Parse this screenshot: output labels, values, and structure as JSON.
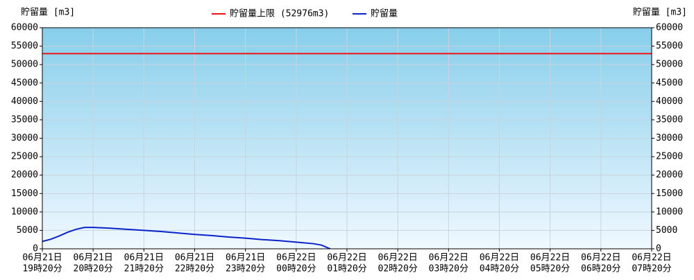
{
  "chart_data": {
    "type": "line",
    "y_label": "貯留量 [m3]",
    "y2_label": "貯留量 [m3]",
    "ylim": [
      0,
      60000
    ],
    "yticks": [
      0,
      5000,
      10000,
      15000,
      20000,
      25000,
      30000,
      35000,
      40000,
      45000,
      50000,
      55000,
      60000
    ],
    "y2lim": [
      0,
      60000
    ],
    "y2ticks": [
      0,
      5000,
      10000,
      15000,
      20000,
      25000,
      30000,
      35000,
      40000,
      45000,
      50000,
      55000,
      60000
    ],
    "xticks": [
      {
        "date": "06月21日",
        "time": "19時20分"
      },
      {
        "date": "06月21日",
        "time": "20時20分"
      },
      {
        "date": "06月21日",
        "time": "21時20分"
      },
      {
        "date": "06月21日",
        "time": "22時20分"
      },
      {
        "date": "06月21日",
        "time": "23時20分"
      },
      {
        "date": "06月22日",
        "time": "00時20分"
      },
      {
        "date": "06月22日",
        "time": "01時20分"
      },
      {
        "date": "06月22日",
        "time": "02時20分"
      },
      {
        "date": "06月22日",
        "time": "03時20分"
      },
      {
        "date": "06月22日",
        "time": "04時20分"
      },
      {
        "date": "06月22日",
        "time": "05時20分"
      },
      {
        "date": "06月22日",
        "time": "06時20分"
      },
      {
        "date": "06月22日",
        "time": "07時20分"
      }
    ],
    "grid": true,
    "limit": {
      "name": "貯留量上限 (52976m3)",
      "color": "#ee1111",
      "value": 52976
    },
    "x": [
      "06月21日 19時20分",
      "06月21日 19時30分",
      "06月21日 19時40分",
      "06月21日 19時50分",
      "06月21日 20時00分",
      "06月21日 20時10分",
      "06月21日 20時20分",
      "06月21日 20時40分",
      "06月21日 21時00分",
      "06月21日 21時20分",
      "06月21日 21時40分",
      "06月21日 22時00分",
      "06月21日 22時20分",
      "06月21日 22時40分",
      "06月21日 23時00分",
      "06月21日 23時20分",
      "06月21日 23時40分",
      "06月22日 00時00分",
      "06月22日 00時20分",
      "06月22日 00時40分",
      "06月22日 00時50分",
      "06月22日 01時00分"
    ],
    "series": [
      {
        "name": "貯留量",
        "color": "#0a22cc",
        "values": [
          2000,
          2600,
          3500,
          4500,
          5300,
          5800,
          5800,
          5600,
          5300,
          5000,
          4700,
          4300,
          3900,
          3600,
          3200,
          2900,
          2500,
          2200,
          1800,
          1400,
          1000,
          0
        ]
      }
    ]
  }
}
